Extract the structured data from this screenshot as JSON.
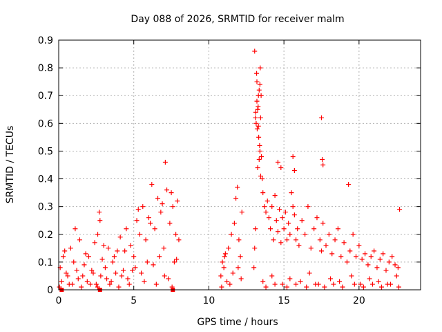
{
  "chart_data": {
    "type": "scatter",
    "title": "Day 088 of 2026, SRMTID for receiver malm",
    "xlabel": "GPS time / hours",
    "ylabel": "SRMTID / TECUs",
    "xlim": [
      0,
      24.1
    ],
    "ylim": [
      0,
      0.9
    ],
    "xticks": [
      0,
      5,
      10,
      15,
      20
    ],
    "yticks": [
      0,
      0.1,
      0.2,
      0.3,
      0.4,
      0.5,
      0.6,
      0.7,
      0.8,
      0.9
    ],
    "xtick_labels": [
      "0",
      "5",
      "10",
      "15",
      "20"
    ],
    "ytick_labels": [
      "0",
      "0.1",
      "0.2",
      "0.3",
      "0.4",
      "0.5",
      "0.6",
      "0.7",
      "0.8",
      "0.9"
    ],
    "grid": true,
    "marker": "+",
    "marker_color": "#ff0000",
    "series": [
      {
        "name": "SRMTID",
        "x": [
          0.1,
          0.3,
          0.6,
          0.8,
          1.0,
          1.2,
          1.4,
          1.7,
          2.0,
          2.3,
          2.6,
          2.7,
          2.75,
          2.9,
          3.1,
          3.3,
          3.6,
          3.9,
          4.1,
          4.3,
          4.5,
          4.8,
          5.0,
          5.2,
          5.4,
          5.6,
          5.8,
          6.0,
          6.2,
          6.4,
          6.6,
          6.8,
          7.0,
          7.1,
          7.2,
          7.4,
          7.6,
          7.8,
          7.9,
          8.0,
          0.2,
          0.5,
          0.9,
          1.3,
          1.6,
          1.9,
          2.2,
          2.5,
          2.8,
          3.2,
          3.5,
          3.8,
          4.2,
          4.6,
          4.9,
          5.1,
          5.5,
          5.9,
          6.3,
          6.7,
          7.3,
          7.7,
          0.4,
          1.1,
          1.8,
          2.4,
          3.0,
          3.7,
          4.4,
          5.3,
          6.1,
          6.9,
          7.5,
          0.05,
          0.7,
          1.5,
          2.1,
          2.6,
          3.4,
          4.0,
          4.7,
          5.7,
          6.5,
          7.05,
          7.55,
          7.85,
          10.8,
          10.9,
          11.0,
          11.1,
          11.2,
          11.3,
          11.5,
          11.7,
          11.8,
          11.9,
          12.0,
          12.1,
          12.2,
          11.4,
          11.6,
          11.95,
          12.15,
          10.85,
          11.05,
          13.0,
          13.05,
          13.1,
          13.15,
          13.2,
          13.25,
          13.3,
          13.35,
          13.4,
          13.45,
          13.5,
          13.55,
          13.6,
          13.7,
          13.8,
          13.9,
          14.0,
          14.1,
          14.2,
          14.3,
          14.4,
          14.5,
          14.6,
          14.7,
          14.8,
          14.9,
          15.0,
          15.1,
          15.2,
          15.3,
          15.4,
          15.5,
          15.6,
          15.7,
          15.8,
          15.9,
          16.0,
          16.2,
          16.4,
          16.6,
          16.8,
          17.0,
          17.2,
          17.4,
          17.5,
          17.6,
          17.8,
          18.0,
          18.2,
          18.4,
          18.6,
          18.8,
          19.0,
          19.2,
          19.4,
          19.6,
          19.8,
          20.0,
          20.2,
          20.4,
          20.6,
          20.8,
          21.0,
          21.2,
          21.4,
          21.6,
          21.8,
          22.0,
          22.2,
          22.4,
          22.6,
          22.7,
          13.05,
          13.12,
          13.18,
          13.22,
          13.28,
          13.32,
          13.38,
          13.42,
          13.48,
          13.2,
          13.1,
          13.3,
          13.4,
          13.35,
          13.25,
          13.45,
          14.6,
          14.8,
          15.6,
          15.7,
          17.5,
          17.55,
          17.6,
          19.3,
          13.6,
          14.2,
          14.9,
          15.4,
          16.1,
          16.7,
          17.3,
          18.1,
          18.7,
          19.5,
          20.1,
          20.7,
          21.3,
          21.9,
          22.5,
          13.8,
          14.4,
          15.2,
          15.8,
          16.5,
          17.1,
          17.7,
          18.3,
          18.9,
          19.7,
          20.3,
          20.9,
          21.5,
          22.1,
          22.65
        ],
        "y": [
          0.08,
          0.12,
          0.05,
          0.15,
          0.1,
          0.07,
          0.18,
          0.09,
          0.12,
          0.06,
          0.2,
          0.28,
          0.25,
          0.11,
          0.08,
          0.15,
          0.1,
          0.14,
          0.19,
          0.07,
          0.22,
          0.16,
          0.12,
          0.25,
          0.2,
          0.3,
          0.18,
          0.26,
          0.38,
          0.22,
          0.33,
          0.28,
          0.15,
          0.46,
          0.36,
          0.24,
          0.3,
          0.2,
          0.32,
          0.18,
          0.03,
          0.06,
          0.02,
          0.04,
          0.05,
          0.03,
          0.07,
          0.02,
          0.05,
          0.04,
          0.03,
          0.06,
          0.05,
          0.04,
          0.07,
          0.08,
          0.06,
          0.1,
          0.09,
          0.12,
          0.04,
          0.1,
          0.14,
          0.22,
          0.13,
          0.17,
          0.16,
          0.12,
          0.14,
          0.29,
          0.24,
          0.31,
          0.35,
          0.01,
          0.02,
          0.01,
          0.02,
          0.01,
          0.02,
          0.01,
          0.02,
          0.03,
          0.02,
          0.05,
          0.01,
          0.11,
          0.05,
          0.1,
          0.08,
          0.13,
          0.03,
          0.15,
          0.2,
          0.24,
          0.33,
          0.37,
          0.18,
          0.12,
          0.28,
          0.02,
          0.06,
          0.08,
          0.04,
          0.01,
          0.12,
          0.08,
          0.15,
          0.22,
          0.6,
          0.68,
          0.65,
          0.7,
          0.72,
          0.74,
          0.62,
          0.48,
          0.4,
          0.35,
          0.3,
          0.28,
          0.32,
          0.26,
          0.22,
          0.3,
          0.18,
          0.34,
          0.25,
          0.21,
          0.29,
          0.17,
          0.26,
          0.22,
          0.28,
          0.18,
          0.24,
          0.2,
          0.35,
          0.3,
          0.27,
          0.18,
          0.22,
          0.16,
          0.25,
          0.2,
          0.3,
          0.15,
          0.22,
          0.26,
          0.18,
          0.14,
          0.24,
          0.16,
          0.2,
          0.13,
          0.18,
          0.22,
          0.12,
          0.17,
          0.1,
          0.14,
          0.2,
          0.12,
          0.16,
          0.11,
          0.13,
          0.09,
          0.12,
          0.14,
          0.08,
          0.11,
          0.13,
          0.07,
          0.1,
          0.12,
          0.09,
          0.08,
          0.29,
          0.86,
          0.64,
          0.78,
          0.58,
          0.66,
          0.55,
          0.52,
          0.8,
          0.7,
          0.75,
          0.62,
          0.59,
          0.5,
          0.47,
          0.44,
          0.41,
          0.46,
          0.44,
          0.48,
          0.43,
          0.62,
          0.47,
          0.45,
          0.38,
          0.03,
          0.05,
          0.02,
          0.04,
          0.03,
          0.06,
          0.02,
          0.04,
          0.03,
          0.05,
          0.02,
          0.04,
          0.03,
          0.02,
          0.05,
          0.01,
          0.02,
          0.01,
          0.02,
          0.01,
          0.02,
          0.01,
          0.02,
          0.01,
          0.02,
          0.01,
          0.02,
          0.01,
          0.02,
          0.01
        ],
        "extra_points_marker": "square",
        "square_x": [
          0.2,
          2.75,
          7.6
        ],
        "square_y": [
          0.0,
          0.0,
          0.0
        ]
      }
    ]
  }
}
